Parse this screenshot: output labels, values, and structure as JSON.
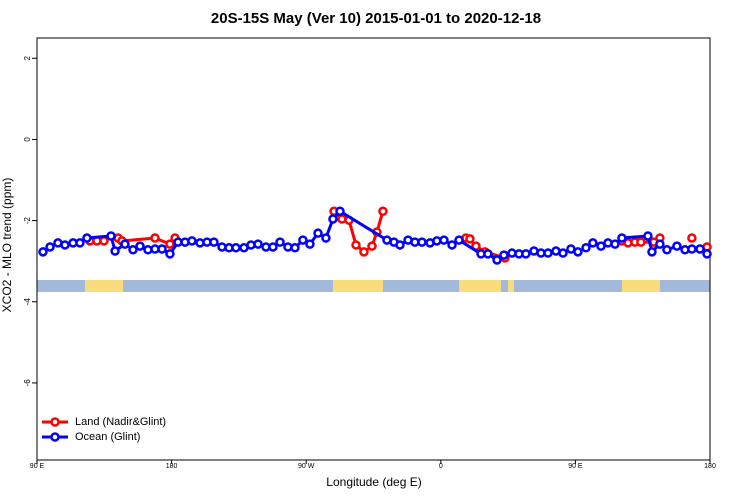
{
  "chart_data": {
    "type": "line",
    "title": "20S-15S May (Ver 10)   2015-01-01 to 2020-12-18",
    "x_label": "Longitude (deg E)",
    "y_label": "XCO2 - MLO trend (ppm)",
    "xlim": [
      90,
      540
    ],
    "xticks": [
      {
        "value": 90,
        "label": "90 E"
      },
      180,
      {
        "value": 270,
        "label": "90 W"
      },
      {
        "value": 360,
        "label": "0"
      },
      {
        "value": 450,
        "label": "90 E"
      },
      {
        "value": 540,
        "label": "180"
      }
    ],
    "ylim": [
      -7.9,
      2.5
    ],
    "yticks": [
      2,
      0,
      -2,
      -4,
      -6
    ],
    "legend": "bottom-left",
    "series": [
      {
        "name": "Land (Nadir&Glint)",
        "color": "#ff0000",
        "x": [
          125.4,
          130.1,
          134.8,
          null,
          144.2,
          146.8,
          168.9,
          178.9,
          182.3,
          null,
          288.6,
          293.9,
          298.6,
          303.3,
          308.6,
          314.0,
          317.3,
          321.3,
          null,
          376.8,
          379.5,
          383.5,
          389.5,
          402.9,
          null,
          481.1,
          485.2,
          489.8,
          493.8,
          502.5,
          506.5,
          null,
          527.9,
          null,
          538.0
        ],
        "values": [
          -2.5,
          -2.5,
          -2.5,
          null,
          -2.43,
          -2.5,
          -2.43,
          -2.58,
          -2.43,
          null,
          -1.77,
          -1.96,
          -1.99,
          -2.6,
          -2.77,
          -2.63,
          -2.28,
          -1.77,
          null,
          -2.43,
          -2.45,
          -2.63,
          -2.77,
          -2.92,
          null,
          -2.5,
          -2.55,
          -2.53,
          -2.53,
          -2.53,
          -2.43,
          null,
          -2.43,
          null,
          -2.65
        ]
      },
      {
        "name": "Ocean (Glint)",
        "color": "#0000ff",
        "x": [
          94.0,
          98.7,
          104.0,
          108.7,
          114.1,
          118.7,
          123.4,
          139.5,
          142.2,
          148.8,
          154.2,
          158.9,
          164.2,
          168.9,
          173.6,
          178.9,
          184.3,
          189.0,
          193.6,
          199.0,
          203.7,
          208.3,
          213.7,
          218.4,
          223.0,
          228.4,
          233.1,
          237.8,
          243.1,
          247.8,
          252.5,
          257.8,
          262.5,
          267.8,
          272.5,
          277.9,
          283.2,
          287.9,
          292.6,
          324.0,
          328.7,
          332.7,
          338.1,
          342.7,
          347.4,
          352.8,
          357.4,
          362.1,
          367.5,
          372.2,
          386.9,
          391.5,
          397.6,
          402.2,
          407.6,
          412.3,
          416.9,
          422.3,
          427.0,
          431.7,
          437.0,
          441.7,
          447.0,
          451.7,
          457.1,
          461.7,
          467.1,
          471.8,
          476.5,
          481.1,
          498.5,
          501.2,
          506.5,
          511.2,
          517.9,
          523.3,
          527.9,
          533.3,
          538.0
        ],
        "values": [
          -2.77,
          -2.65,
          -2.55,
          -2.6,
          -2.55,
          -2.55,
          -2.43,
          -2.38,
          -2.75,
          -2.58,
          -2.72,
          -2.63,
          -2.72,
          -2.7,
          -2.7,
          -2.82,
          -2.53,
          -2.53,
          -2.5,
          -2.55,
          -2.53,
          -2.53,
          -2.65,
          -2.67,
          -2.67,
          -2.67,
          -2.6,
          -2.58,
          -2.65,
          -2.65,
          -2.53,
          -2.65,
          -2.67,
          -2.48,
          -2.58,
          -2.31,
          -2.43,
          -1.96,
          -1.77,
          -2.48,
          -2.53,
          -2.6,
          -2.48,
          -2.53,
          -2.53,
          -2.55,
          -2.5,
          -2.48,
          -2.6,
          -2.48,
          -2.82,
          -2.82,
          -2.97,
          -2.85,
          -2.8,
          -2.82,
          -2.82,
          -2.75,
          -2.8,
          -2.8,
          -2.75,
          -2.8,
          -2.7,
          -2.77,
          -2.67,
          -2.55,
          -2.63,
          -2.55,
          -2.58,
          -2.43,
          -2.38,
          -2.77,
          -2.58,
          -2.72,
          -2.63,
          -2.72,
          -2.7,
          -2.7,
          -2.82
        ]
      }
    ]
  }
}
